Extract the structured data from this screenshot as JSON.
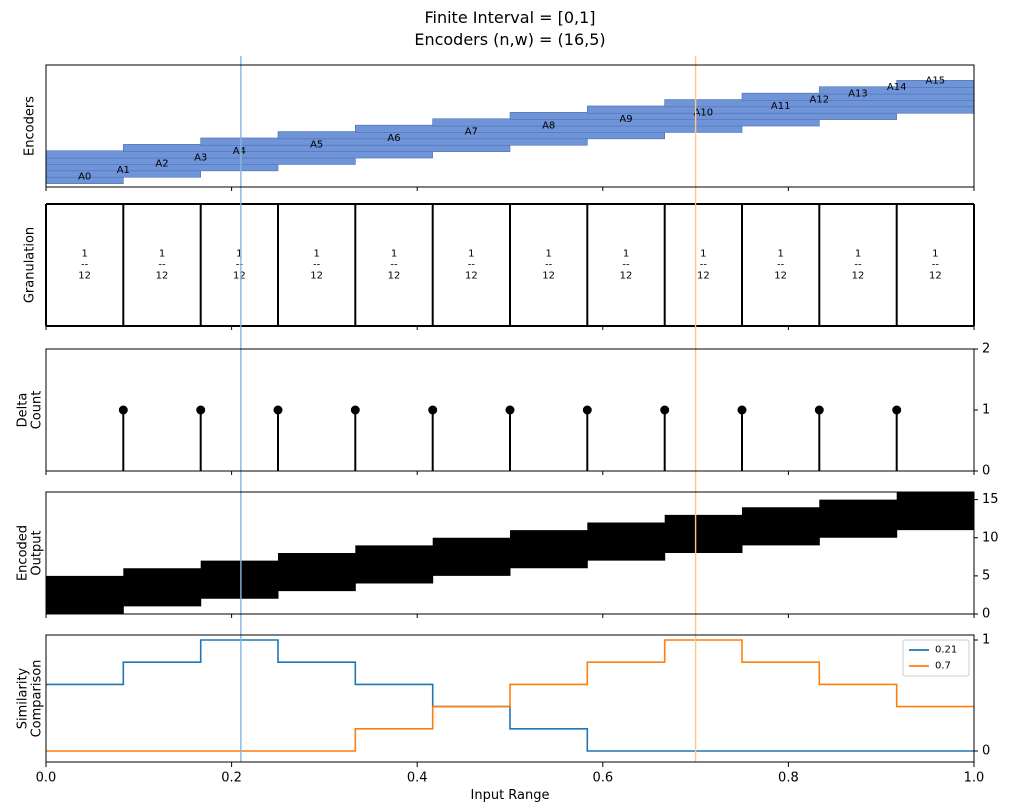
{
  "chart_data": {
    "title_line1": "Finite Interval = [0,1]",
    "title_line2": "Encoders (n,w) = (16,5)",
    "xlabel": "Input Range",
    "xlim": [
      0,
      1
    ],
    "x_ticks": [
      "0.0",
      "0.2",
      "0.4",
      "0.6",
      "0.8",
      "1.0"
    ],
    "x_tick_values": [
      0,
      0.2,
      0.4,
      0.6,
      0.8,
      1.0
    ],
    "n": 16,
    "w": 5,
    "vertical_markers": [
      {
        "value": 0.21,
        "color": "#86b5e0"
      },
      {
        "value": 0.7,
        "color": "#ffc58f"
      }
    ],
    "panels": {
      "encoders": {
        "type": "bar",
        "ylabel": "Encoders",
        "bar_color": "#6f94d8",
        "labels": [
          "A0",
          "A1",
          "A2",
          "A3",
          "A4",
          "A5",
          "A6",
          "A7",
          "A8",
          "A9",
          "A10",
          "A11",
          "A12",
          "A13",
          "A14",
          "A15"
        ]
      },
      "granulation": {
        "type": "bar",
        "ylabel": "Granulation",
        "boundaries": [
          0,
          0.0833,
          0.1667,
          0.25,
          0.3333,
          0.4167,
          0.5,
          0.5833,
          0.6667,
          0.75,
          0.8333,
          0.9167,
          1.0
        ],
        "numerator": "1",
        "denominator": "12",
        "dash": "--"
      },
      "delta": {
        "type": "scatter",
        "ylabel_line1": "Delta",
        "ylabel_line2": "Count",
        "ylim": [
          0,
          2
        ],
        "y_ticks": [
          "0",
          "1",
          "2"
        ],
        "x": [
          0.0833,
          0.1667,
          0.25,
          0.3333,
          0.4167,
          0.5,
          0.5833,
          0.6667,
          0.75,
          0.8333,
          0.9167
        ],
        "y": [
          1,
          1,
          1,
          1,
          1,
          1,
          1,
          1,
          1,
          1,
          1
        ]
      },
      "encoded": {
        "type": "area",
        "ylabel_line1": "Encoded",
        "ylabel_line2": "Output",
        "ylim": [
          0,
          16
        ],
        "y_ticks": [
          "0",
          "5",
          "10",
          "15"
        ],
        "y_tick_values": [
          0,
          5,
          10,
          15
        ],
        "segments": [
          {
            "x0": 0,
            "x1": 0.0833,
            "lo": 0,
            "hi": 5
          },
          {
            "x0": 0.0833,
            "x1": 0.1667,
            "lo": 1,
            "hi": 6
          },
          {
            "x0": 0.1667,
            "x1": 0.25,
            "lo": 2,
            "hi": 7
          },
          {
            "x0": 0.25,
            "x1": 0.3333,
            "lo": 3,
            "hi": 8
          },
          {
            "x0": 0.3333,
            "x1": 0.4167,
            "lo": 4,
            "hi": 9
          },
          {
            "x0": 0.4167,
            "x1": 0.5,
            "lo": 5,
            "hi": 10
          },
          {
            "x0": 0.5,
            "x1": 0.5833,
            "lo": 6,
            "hi": 11
          },
          {
            "x0": 0.5833,
            "x1": 0.6667,
            "lo": 7,
            "hi": 12
          },
          {
            "x0": 0.6667,
            "x1": 0.75,
            "lo": 8,
            "hi": 13
          },
          {
            "x0": 0.75,
            "x1": 0.8333,
            "lo": 9,
            "hi": 14
          },
          {
            "x0": 0.8333,
            "x1": 0.9167,
            "lo": 10,
            "hi": 15
          },
          {
            "x0": 0.9167,
            "x1": 1.0,
            "lo": 11,
            "hi": 16
          }
        ]
      },
      "similarity": {
        "type": "line",
        "ylabel_line1": "Similarity",
        "ylabel_line2": "Comparison",
        "ylim": [
          0,
          1
        ],
        "y_ticks": [
          "0",
          "1"
        ],
        "y_tick_values": [
          0,
          1
        ],
        "x_steps": [
          0,
          0.0833,
          0.1667,
          0.25,
          0.3333,
          0.4167,
          0.5,
          0.5833,
          0.6667,
          0.75,
          0.8333,
          0.9167,
          1.0
        ],
        "legend_position": "upper right",
        "series": [
          {
            "name": "0.21",
            "color": "#1f77b4",
            "values": [
              0.6,
              0.8,
              1.0,
              0.8,
              0.6,
              0.4,
              0.2,
              0,
              0,
              0,
              0,
              0
            ]
          },
          {
            "name": "0.7",
            "color": "#ff7f0e",
            "values": [
              0,
              0,
              0,
              0,
              0.2,
              0.4,
              0.6,
              0.8,
              1.0,
              0.8,
              0.6,
              0.4
            ]
          }
        ]
      }
    }
  }
}
